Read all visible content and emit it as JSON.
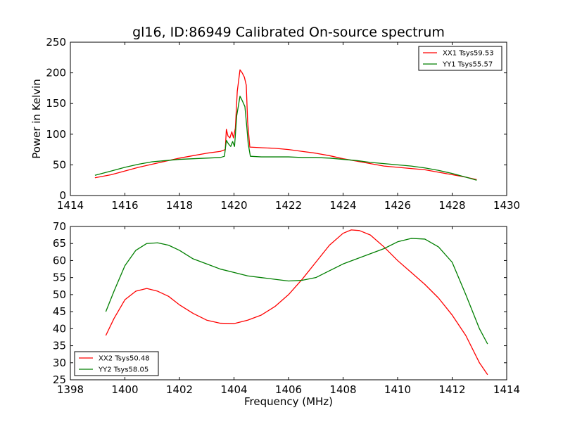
{
  "colors": {
    "xx": "#ff0000",
    "yy": "#007f00"
  },
  "chart_data": [
    {
      "type": "line",
      "title": "gl16, ID:86949 Calibrated On-source spectrum",
      "xlabel": "",
      "ylabel": "Power in Kelvin",
      "xlim": [
        1414,
        1430
      ],
      "ylim": [
        0,
        250
      ],
      "xticks": [
        1414,
        1416,
        1418,
        1420,
        1422,
        1424,
        1426,
        1428,
        1430
      ],
      "yticks": [
        0,
        50,
        100,
        150,
        200,
        250
      ],
      "legend_position": "top-right",
      "series": [
        {
          "name": "XX1 Tsys59.53",
          "color": "#ff0000",
          "points": [
            [
              1414.9,
              29
            ],
            [
              1415.5,
              34
            ],
            [
              1416,
              40
            ],
            [
              1416.5,
              46
            ],
            [
              1417,
              51
            ],
            [
              1417.5,
              56
            ],
            [
              1418,
              61
            ],
            [
              1418.5,
              65
            ],
            [
              1419,
              69
            ],
            [
              1419.5,
              72
            ],
            [
              1419.68,
              75
            ],
            [
              1419.72,
              108
            ],
            [
              1419.78,
              97
            ],
            [
              1419.85,
              94
            ],
            [
              1419.92,
              104
            ],
            [
              1419.98,
              94
            ],
            [
              1420.05,
              110
            ],
            [
              1420.12,
              170
            ],
            [
              1420.22,
              205
            ],
            [
              1420.3,
              200
            ],
            [
              1420.38,
              193
            ],
            [
              1420.45,
              180
            ],
            [
              1420.5,
              120
            ],
            [
              1420.58,
              79
            ],
            [
              1421,
              78
            ],
            [
              1421.5,
              77
            ],
            [
              1422,
              75
            ],
            [
              1422.5,
              72
            ],
            [
              1423,
              69
            ],
            [
              1423.5,
              65
            ],
            [
              1424,
              60
            ],
            [
              1424.5,
              56
            ],
            [
              1425,
              52
            ],
            [
              1425.5,
              48
            ],
            [
              1426,
              46
            ],
            [
              1426.5,
              44
            ],
            [
              1427,
              42
            ],
            [
              1427.5,
              38
            ],
            [
              1428,
              34
            ],
            [
              1428.5,
              30
            ],
            [
              1428.9,
              26
            ]
          ]
        },
        {
          "name": "YY1 Tsys55.57",
          "color": "#007f00",
          "points": [
            [
              1414.9,
              33
            ],
            [
              1415.5,
              40
            ],
            [
              1416,
              46
            ],
            [
              1416.5,
              51
            ],
            [
              1417,
              55
            ],
            [
              1417.5,
              57
            ],
            [
              1418,
              59
            ],
            [
              1418.5,
              60
            ],
            [
              1419,
              61
            ],
            [
              1419.5,
              62
            ],
            [
              1419.65,
              64
            ],
            [
              1419.72,
              90
            ],
            [
              1419.8,
              84
            ],
            [
              1419.88,
              80
            ],
            [
              1419.95,
              88
            ],
            [
              1420.02,
              80
            ],
            [
              1420.1,
              130
            ],
            [
              1420.22,
              162
            ],
            [
              1420.3,
              155
            ],
            [
              1420.4,
              145
            ],
            [
              1420.47,
              112
            ],
            [
              1420.52,
              85
            ],
            [
              1420.6,
              64
            ],
            [
              1421,
              63
            ],
            [
              1421.5,
              63
            ],
            [
              1422,
              63
            ],
            [
              1422.5,
              62
            ],
            [
              1423,
              62
            ],
            [
              1423.5,
              61
            ],
            [
              1424,
              59
            ],
            [
              1424.5,
              57
            ],
            [
              1425,
              54
            ],
            [
              1425.5,
              52
            ],
            [
              1426,
              50
            ],
            [
              1426.5,
              48
            ],
            [
              1427,
              45
            ],
            [
              1427.5,
              41
            ],
            [
              1428,
              36
            ],
            [
              1428.5,
              30
            ],
            [
              1428.9,
              25
            ]
          ]
        }
      ]
    },
    {
      "type": "line",
      "title": "",
      "xlabel": "Frequency (MHz)",
      "ylabel": "",
      "xlim": [
        1398,
        1414
      ],
      "ylim": [
        25,
        70
      ],
      "xticks": [
        1398,
        1400,
        1402,
        1404,
        1406,
        1408,
        1410,
        1412,
        1414
      ],
      "yticks": [
        25,
        30,
        35,
        40,
        45,
        50,
        55,
        60,
        65,
        70
      ],
      "legend_position": "bottom-left",
      "series": [
        {
          "name": "XX2 Tsys50.48",
          "color": "#ff0000",
          "points": [
            [
              1399.3,
              38
            ],
            [
              1399.6,
              43
            ],
            [
              1400,
              48.5
            ],
            [
              1400.4,
              51
            ],
            [
              1400.8,
              51.8
            ],
            [
              1401.2,
              51
            ],
            [
              1401.6,
              49.5
            ],
            [
              1402,
              47
            ],
            [
              1402.5,
              44.5
            ],
            [
              1403,
              42.5
            ],
            [
              1403.5,
              41.6
            ],
            [
              1404,
              41.5
            ],
            [
              1404.5,
              42.5
            ],
            [
              1405,
              44
            ],
            [
              1405.5,
              46.5
            ],
            [
              1406,
              50
            ],
            [
              1406.5,
              54.5
            ],
            [
              1407,
              59.5
            ],
            [
              1407.5,
              64.5
            ],
            [
              1408,
              68
            ],
            [
              1408.3,
              69
            ],
            [
              1408.6,
              68.8
            ],
            [
              1409,
              67.5
            ],
            [
              1409.5,
              64
            ],
            [
              1410,
              60
            ],
            [
              1410.5,
              56.5
            ],
            [
              1411,
              53
            ],
            [
              1411.5,
              49
            ],
            [
              1412,
              44
            ],
            [
              1412.5,
              38
            ],
            [
              1413,
              30
            ],
            [
              1413.3,
              26.5
            ]
          ]
        },
        {
          "name": "YY2 Tsys58.05",
          "color": "#007f00",
          "points": [
            [
              1399.3,
              45
            ],
            [
              1399.6,
              51
            ],
            [
              1400,
              58.5
            ],
            [
              1400.4,
              63
            ],
            [
              1400.8,
              65
            ],
            [
              1401.2,
              65.2
            ],
            [
              1401.6,
              64.5
            ],
            [
              1402,
              63
            ],
            [
              1402.5,
              60.5
            ],
            [
              1403,
              59
            ],
            [
              1403.5,
              57.5
            ],
            [
              1404,
              56.5
            ],
            [
              1404.5,
              55.5
            ],
            [
              1405,
              55
            ],
            [
              1405.5,
              54.5
            ],
            [
              1406,
              54
            ],
            [
              1406.5,
              54.2
            ],
            [
              1407,
              55
            ],
            [
              1407.5,
              57
            ],
            [
              1408,
              59
            ],
            [
              1408.5,
              60.5
            ],
            [
              1409,
              62
            ],
            [
              1409.5,
              63.5
            ],
            [
              1410,
              65.5
            ],
            [
              1410.5,
              66.5
            ],
            [
              1411,
              66.3
            ],
            [
              1411.5,
              64
            ],
            [
              1412,
              59.5
            ],
            [
              1412.5,
              50
            ],
            [
              1413,
              40
            ],
            [
              1413.3,
              35.5
            ]
          ]
        }
      ]
    }
  ]
}
